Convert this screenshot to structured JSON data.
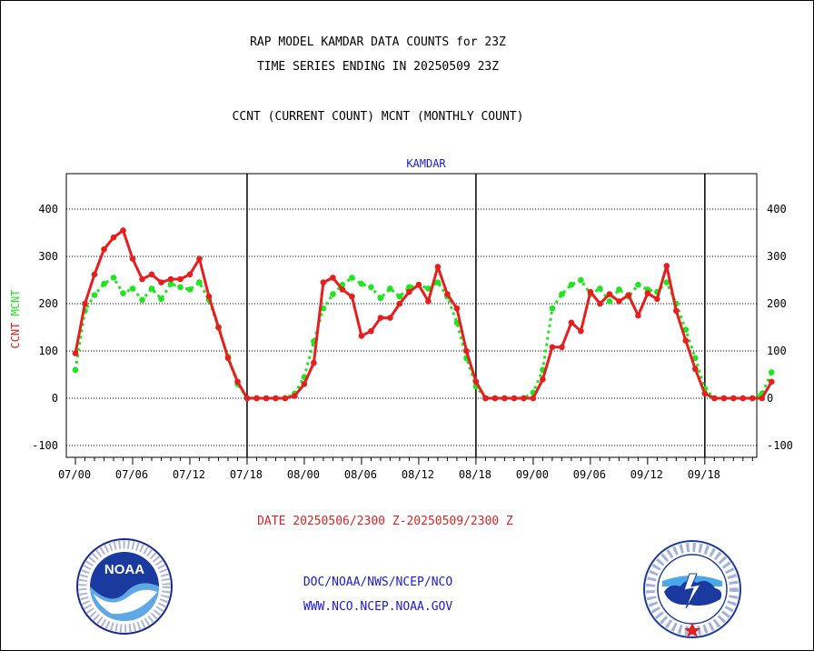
{
  "title_line1": "RAP MODEL KAMDAR DATA COUNTS for 23Z",
  "title_line2": "TIME SERIES ENDING IN 20250509 23Z",
  "subtitle": "CCNT (CURRENT COUNT) MCNT (MONTHLY COUNT)",
  "date_range": "DATE 20250506/2300 Z-20250509/2300 Z",
  "footer_org": "DOC/NOAA/NWS/NCEP/NCO",
  "footer_url": "WWW.NCO.NCEP.NOAA.GOV",
  "logos": {
    "left": {
      "name": "noaa-logo",
      "text": "NOAA"
    },
    "right": {
      "name": "nws-logo",
      "text": "NATIONAL WEATHER SERVICE"
    }
  },
  "chart_data": {
    "type": "line",
    "title": "KAMDAR",
    "ylabel_series": [
      "CCNT",
      "MCNT"
    ],
    "ylim": [
      -125,
      475
    ],
    "yticks": [
      -100,
      0,
      100,
      200,
      300,
      400
    ],
    "x_tick_labels": [
      "07/00",
      "07/06",
      "07/12",
      "07/18",
      "08/00",
      "08/06",
      "08/12",
      "08/18",
      "09/00",
      "09/06",
      "09/12",
      "09/18"
    ],
    "x_start_hour": 0,
    "x_end_hour": 72,
    "day_boundaries_hours": [
      18,
      42,
      66
    ],
    "grid": true,
    "colors": {
      "ccnt": "#e61e1e",
      "mcnt": "#1ee61e"
    },
    "series": [
      {
        "name": "CCNT",
        "values": [
          95,
          200,
          262,
          315,
          340,
          355,
          295,
          252,
          262,
          245,
          252,
          252,
          262,
          295,
          215,
          150,
          85,
          35,
          0,
          0,
          0,
          0,
          0,
          5,
          30,
          75,
          245,
          255,
          230,
          215,
          132,
          142,
          170,
          170,
          200,
          225,
          240,
          205,
          278,
          220,
          190,
          100,
          35,
          0,
          0,
          0,
          0,
          0,
          0,
          40,
          108,
          108,
          160,
          142,
          225,
          200,
          220,
          205,
          218,
          175,
          222,
          210,
          280,
          185,
          122,
          62,
          10,
          0,
          0,
          0,
          0,
          0,
          0,
          35
        ]
      },
      {
        "name": "MCNT",
        "values": [
          60,
          185,
          218,
          242,
          255,
          222,
          232,
          208,
          232,
          210,
          242,
          235,
          230,
          245,
          208,
          150,
          88,
          30,
          0,
          0,
          0,
          0,
          0,
          10,
          45,
          120,
          190,
          220,
          240,
          255,
          242,
          235,
          212,
          232,
          215,
          235,
          240,
          232,
          245,
          215,
          160,
          85,
          25,
          0,
          0,
          0,
          0,
          0,
          12,
          60,
          190,
          220,
          240,
          250,
          220,
          232,
          205,
          230,
          215,
          240,
          230,
          225,
          245,
          200,
          145,
          85,
          20,
          0,
          0,
          0,
          0,
          0,
          10,
          55
        ]
      }
    ]
  }
}
